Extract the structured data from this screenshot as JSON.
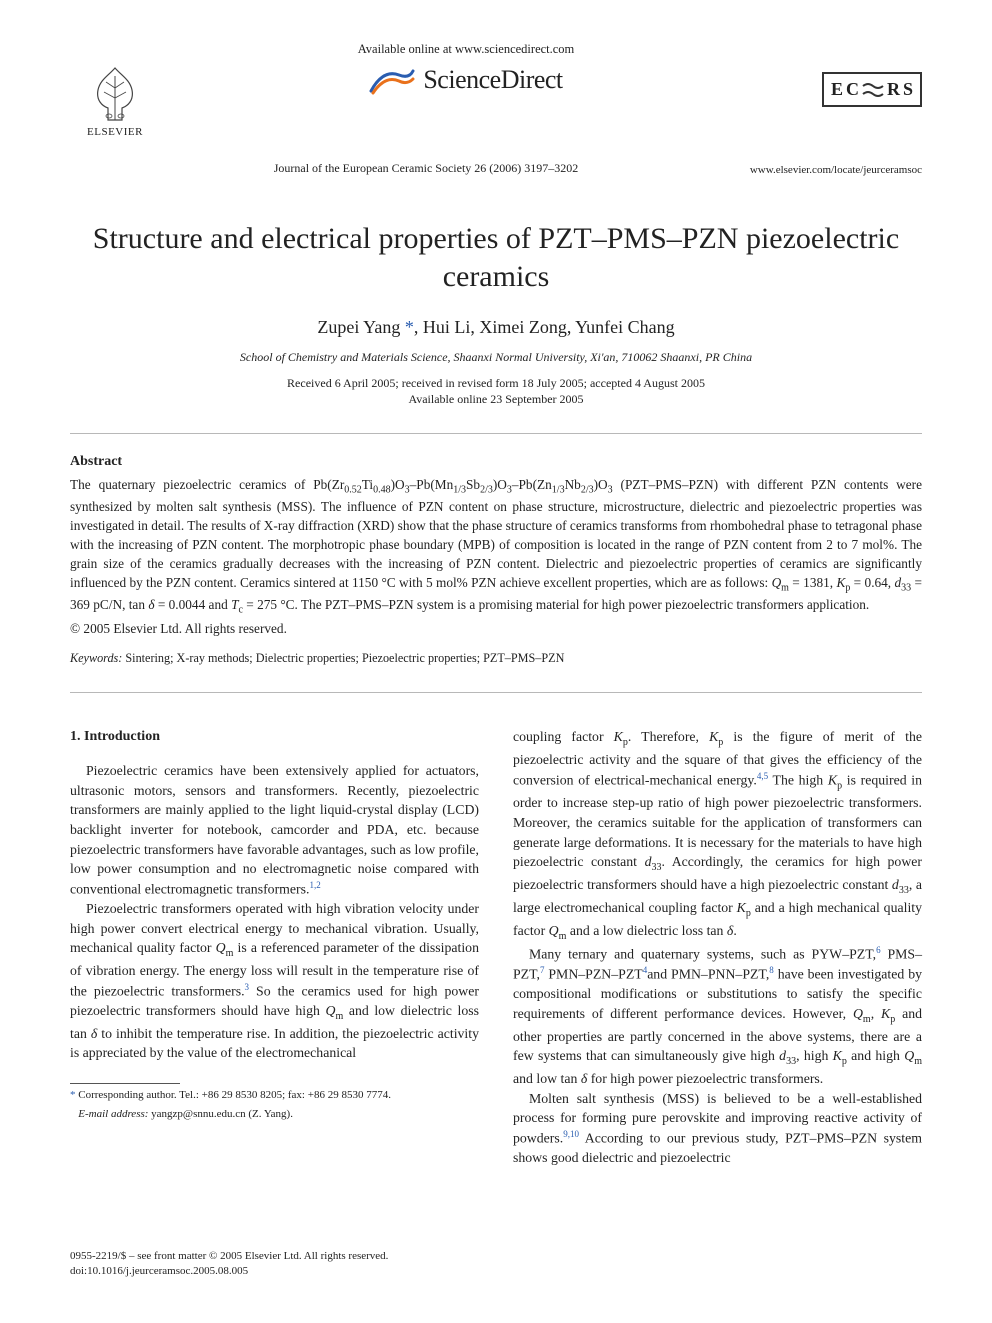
{
  "header": {
    "available_online": "Available online at www.sciencedirect.com",
    "sciencedirect": "ScienceDirect",
    "elsevier_label": "ELSEVIER",
    "ecrs_letters": [
      "E",
      "C",
      "R",
      "S"
    ],
    "journal_ref": "Journal of the European Ceramic Society 26 (2006) 3197–3202",
    "journal_url": "www.elsevier.com/locate/jeurceramsoc"
  },
  "article": {
    "title": "Structure and electrical properties of PZT–PMS–PZN piezoelectric ceramics",
    "authors_html": "Zupei Yang <span class='author-star'>*</span>, Hui Li, Ximei Zong, Yunfei Chang",
    "affiliation": "School of Chemistry and Materials Science, Shaanxi Normal University, Xi'an, 710062 Shaanxi, PR China",
    "received_line": "Received 6 April 2005; received in revised form 18 July 2005; accepted 4 August 2005",
    "online_line": "Available online 23 September 2005"
  },
  "abstract": {
    "heading": "Abstract",
    "body_html": "The quaternary piezoelectric ceramics of Pb(Zr<span class='sub'>0.52</span>Ti<span class='sub'>0.48</span>)O<span class='sub'>3</span>–Pb(Mn<span class='sub'>1/3</span>Sb<span class='sub'>2/3</span>)O<span class='sub'>3</span>–Pb(Zn<span class='sub'>1/3</span>Nb<span class='sub'>2/3</span>)O<span class='sub'>3</span> (PZT–PMS–PZN) with different PZN contents were synthesized by molten salt synthesis (MSS). The influence of PZN content on phase structure, microstructure, dielectric and piezoelectric properties was investigated in detail. The results of X-ray diffraction (XRD) show that the phase structure of ceramics transforms from rhombohedral phase to tetragonal phase with the increasing of PZN content. The morphotropic phase boundary (MPB) of composition is located in the range of PZN content from 2 to 7 mol%. The grain size of the ceramics gradually decreases with the increasing of PZN content. Dielectric and piezoelectric properties of ceramics are significantly influenced by the PZN content. Ceramics sintered at 1150 °C with 5 mol% PZN achieve excellent properties, which are as follows: <span class='i'>Q</span><span class='sub'>m</span> = 1381, <span class='i'>K</span><span class='sub'>p</span> = 0.64, <span class='i'>d</span><span class='sub'>33</span> = 369 pC/N, tan <span class='i'>δ</span> = 0.0044 and <span class='i'>T</span><span class='sub'>c</span> = 275 °C. The PZT–PMS–PZN system is a promising material for high power piezoelectric transformers application.",
    "copyright": "© 2005 Elsevier Ltd. All rights reserved.",
    "keywords_label": "Keywords:",
    "keywords": "Sintering; X-ray methods; Dielectric properties; Piezoelectric properties; PZT–PMS–PZN"
  },
  "body": {
    "sec1_heading": "1.  Introduction",
    "col1_p1_html": "Piezoelectric ceramics have been extensively applied for actuators, ultrasonic motors, sensors and transformers. Recently, piezoelectric transformers are mainly applied to the light liquid-crystal display (LCD) backlight inverter for notebook, camcorder and PDA, etc. because piezoelectric transformers have favorable advantages, such as low profile, low power consumption and no electromagnetic noise compared with conventional electromagnetic transformers.<span class='sup'>1,2</span>",
    "col1_p2_html": "Piezoelectric transformers operated with high vibration velocity under high power convert electrical energy to mechanical vibration. Usually, mechanical quality factor <span class='i'>Q</span><span class='sub'>m</span> is a referenced parameter of the dissipation of vibration energy. The energy loss will result in the temperature rise of the piezoelectric transformers.<span class='sup'>3</span> So the ceramics used for high power piezoelectric transformers should have high <span class='i'>Q</span><span class='sub'>m</span> and low dielectric loss tan <span class='i'>δ</span> to inhibit the temperature rise. In addition, the piezoelectric activity is appreciated by the value of the electromechanical",
    "col2_p1_html": "coupling factor <span class='i'>K</span><span class='sub'>p</span>. Therefore, <span class='i'>K</span><span class='sub'>p</span> is the figure of merit of the piezoelectric activity and the square of that gives the efficiency of the conversion of electrical-mechanical energy.<span class='sup'>4,5</span> The high <span class='i'>K</span><span class='sub'>p</span> is required in order to increase step-up ratio of high power piezoelectric transformers. Moreover, the ceramics suitable for the application of transformers can generate large deformations. It is necessary for the materials to have high piezoelectric constant <span class='i'>d</span><span class='sub'>33</span>. Accordingly, the ceramics for high power piezoelectric transformers should have a high piezoelectric constant <span class='i'>d</span><span class='sub'>33</span>, a large electromechanical coupling factor <span class='i'>K</span><span class='sub'>p</span> and a high mechanical quality factor <span class='i'>Q</span><span class='sub'>m</span> and a low dielectric loss tan <span class='i'>δ</span>.",
    "col2_p2_html": "Many ternary and quaternary systems, such as PYW–PZT,<span class='sup'>6</span> PMS–PZT,<span class='sup'>7</span> PMN–PZN–PZT<span class='sup'>4</span>and PMN–PNN–PZT,<span class='sup'>8</span> have been investigated by compositional modifications or substitutions to satisfy the specific requirements of different performance devices. However, <span class='i'>Q</span><span class='sub'>m</span>, <span class='i'>K</span><span class='sub'>p</span> and other properties are partly concerned in the above systems, there are a few systems that can simultaneously give high <span class='i'>d</span><span class='sub'>33</span>, high <span class='i'>K</span><span class='sub'>p</span> and high <span class='i'>Q</span><span class='sub'>m</span> and low tan <span class='i'>δ</span> for high power piezoelectric transformers.",
    "col2_p3_html": "Molten salt synthesis (MSS) is believed to be a well-established process for forming pure perovskite and improving reactive activity of powders.<span class='sup'>9,10</span> According to our previous study, PZT–PMS–PZN system shows good dielectric and piezoelectric"
  },
  "footnote": {
    "corr_html": "<span class='author-star'>*</span> Corresponding author. Tel.: +86 29 8530 8205; fax: +86 29 8530 7774.",
    "email_label": "E-mail address:",
    "email": "yangzp@snnu.edu.cn (Z. Yang)."
  },
  "doi": {
    "line1": "0955-2219/$ – see front matter © 2005 Elsevier Ltd. All rights reserved.",
    "line2": "doi:10.1016/j.jeurceramsoc.2005.08.005"
  },
  "colors": {
    "text": "#222222",
    "link_blue": "#2a5db0",
    "rule_gray": "#888888",
    "elsevier_orange": "#e9711c"
  }
}
